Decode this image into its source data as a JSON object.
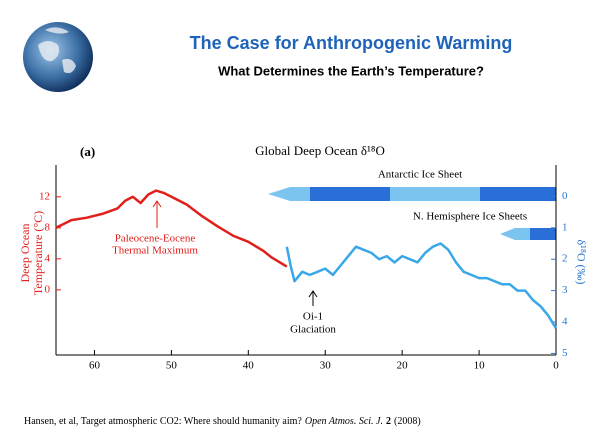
{
  "header": {
    "title": "The Case for Anthropogenic Warming",
    "subtitle": "What Determines the Earth’s Temperature?"
  },
  "chart_data": {
    "type": "line",
    "panel": "(a)",
    "title": "Global Deep Ocean δ¹⁸O",
    "ylabel": [
      "Deep Ocean",
      "Temperature (°C)"
    ],
    "y2label": "δ¹⁸O (‰)",
    "xlim": [
      65,
      0
    ],
    "xticks": [
      60,
      50,
      40,
      30,
      20,
      10,
      0
    ],
    "ylim": [
      -8.4,
      16.1
    ],
    "yticks": [
      0,
      4,
      8,
      12
    ],
    "ycolor": "#e0201b",
    "y2lim": [
      5.05,
      -1
    ],
    "y2ticks": [
      0,
      1,
      2,
      3,
      4,
      5
    ],
    "y2color": "#2a78d0",
    "series": [
      {
        "color": "#e0201b",
        "x": [
          65,
          63,
          61,
          59,
          57,
          56,
          55,
          54,
          53,
          52,
          51,
          50,
          48,
          46,
          44,
          42,
          40,
          38,
          37,
          36,
          35
        ],
        "values": [
          8,
          9,
          9.3,
          9.8,
          10.5,
          11.5,
          12,
          11.2,
          12.3,
          12.8,
          12.5,
          12,
          11,
          9.5,
          8.2,
          7,
          6.2,
          5,
          4.2,
          3.6,
          3
        ]
      },
      {
        "color": "#3aa8e8",
        "axis": "y2",
        "x": [
          35,
          34.5,
          34,
          33,
          32,
          31,
          30,
          29,
          28,
          27,
          26,
          25,
          24,
          23,
          22,
          21,
          20,
          19,
          18,
          17,
          16,
          15,
          14,
          13,
          12,
          11,
          10,
          9,
          8,
          7,
          6,
          5,
          4,
          3,
          2,
          1,
          0
        ],
        "values": [
          1.6,
          2.2,
          2.7,
          2.4,
          2.5,
          2.4,
          2.3,
          2.5,
          2.2,
          1.9,
          1.6,
          1.7,
          1.8,
          2.0,
          1.9,
          2.1,
          1.9,
          2.0,
          2.1,
          1.8,
          1.6,
          1.5,
          1.7,
          2.1,
          2.4,
          2.5,
          2.6,
          2.6,
          2.7,
          2.8,
          2.8,
          3.0,
          3.0,
          3.3,
          3.5,
          3.8,
          4.2
        ]
      }
    ],
    "annotations": {
      "petm": [
        "Paleocene-Eocene",
        "Thermal Maximum"
      ],
      "oi1": [
        "Oi-1",
        "Glaciation"
      ],
      "antarctic": "Antarctic Ice Sheet",
      "nh": "N. Hemisphere Ice Sheets"
    }
  },
  "citation": {
    "text": "Hansen, et al, Target atmospheric CO2: Where should humanity aim?",
    "journal": "Open Atmos. Sci. J.",
    "volume": "2",
    "year": "(2008)"
  }
}
